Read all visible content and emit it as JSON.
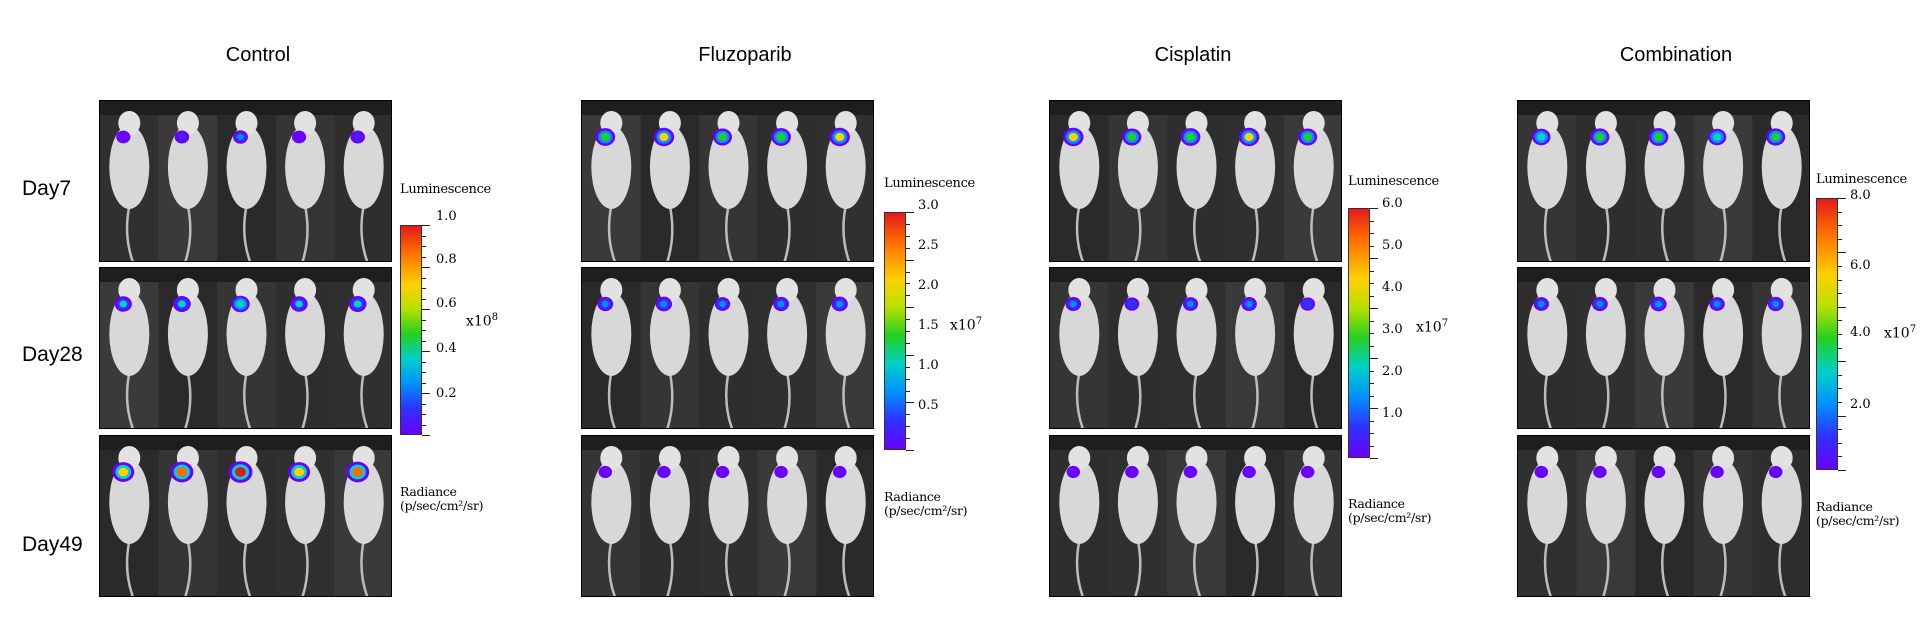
{
  "groups": [
    {
      "title": "Control",
      "scale_max": "1.0",
      "unit": "x10",
      "exp": "8",
      "ticks": [
        "1.0",
        "0.8",
        "0.6",
        "0.4",
        "0.2"
      ]
    },
    {
      "title": "Fluzoparib",
      "scale_max": "3.0",
      "unit": "x10",
      "exp": "7",
      "ticks": [
        "3.0",
        "2.5",
        "2.0",
        "1.5",
        "1.0",
        "0.5"
      ]
    },
    {
      "title": "Cisplatin",
      "scale_max": "6.0",
      "unit": "x10",
      "exp": "7",
      "ticks": [
        "6.0",
        "5.0",
        "4.0",
        "3.0",
        "2.0",
        "1.0"
      ]
    },
    {
      "title": "Combination",
      "scale_max": "8.0",
      "unit": "x10",
      "exp": "7",
      "ticks": [
        "8.0",
        "6.0",
        "4.0",
        "2.0"
      ]
    }
  ],
  "days": [
    "Day7",
    "Day28",
    "Day49"
  ],
  "colorbar_title": "Luminescence",
  "radiance_line1": "Radiance",
  "radiance_line2": "(p/sec/cm²/sr)",
  "colors": {
    "background": "#ffffff",
    "panel": "#2c2c2c",
    "mouse": "#d8d8d8"
  }
}
